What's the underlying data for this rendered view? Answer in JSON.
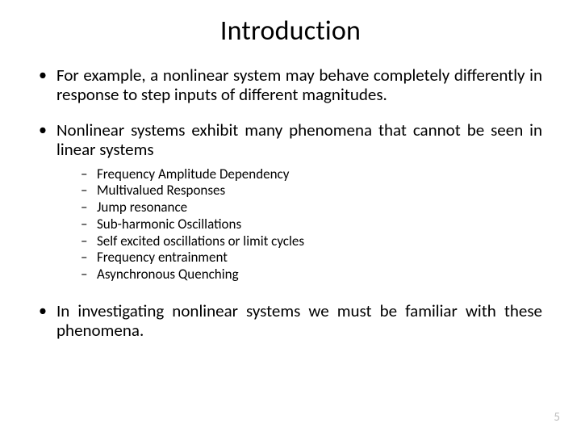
{
  "slide": {
    "title": "Introduction",
    "title_fontsize": 34,
    "body_fontsize": 21,
    "sublist_fontsize": 17,
    "background_color": "#ffffff",
    "text_color": "#000000",
    "pagenum_color": "#bfbfbf",
    "bullets": [
      {
        "text": "For example, a nonlinear system may behave completely differently in response to step inputs of different magnitudes.",
        "sub": []
      },
      {
        "text": "Nonlinear systems exhibit many phenomena that cannot be seen in linear systems",
        "sub": [
          "Frequency Amplitude Dependency",
          "Multivalued Responses",
          "Jump resonance",
          "Sub-harmonic Oscillations",
          "Self excited oscillations or limit cycles",
          "Frequency entrainment",
          "Asynchronous Quenching"
        ]
      },
      {
        "text": "In investigating nonlinear systems we must be familiar with these phenomena.",
        "sub": []
      }
    ],
    "page_number": "5",
    "l1_marker": "•",
    "l2_marker": "–"
  }
}
